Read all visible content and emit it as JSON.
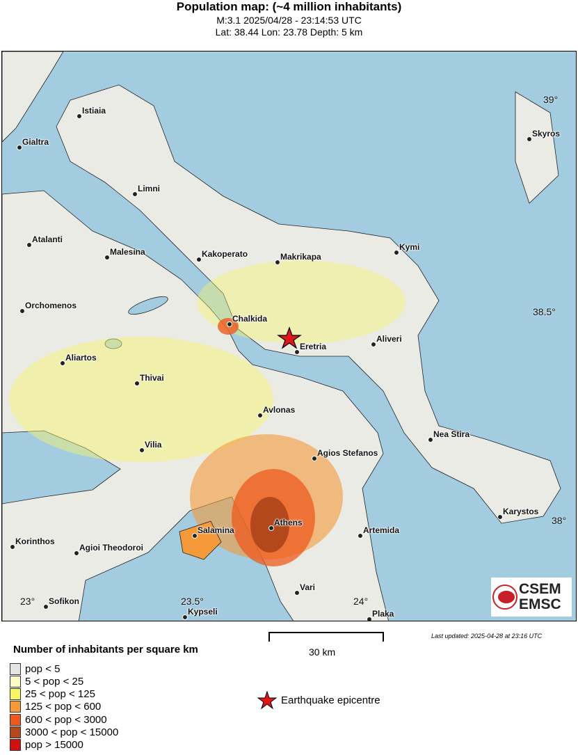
{
  "header": {
    "title": "Population map: (~4 million inhabitants)",
    "line1": "M:3.1 2025/04/28 - 23:14:53 UTC",
    "line2": "Lat: 38.44 Lon: 23.78 Depth: 5 km"
  },
  "map": {
    "sea_color": "#a3cce0",
    "land_color": "#ebebe6",
    "grid_labels": {
      "lat39": "39°",
      "lat38_5": "38.5°",
      "lat38": "38°",
      "lon23": "23°",
      "lon23_5": "23.5°",
      "lon24": "24°"
    },
    "cities": [
      "Istiaia",
      "Gialtra",
      "Limni",
      "Atalanti",
      "Malesina",
      "Kakoperato",
      "Makrikapa",
      "Kymi",
      "Skyros",
      "Orchomenos",
      "Chalkida",
      "Eretria",
      "Aliveri",
      "Aliartos",
      "Thivai",
      "Avlonas",
      "Vilia",
      "Agios Stefanos",
      "Nea Stira",
      "Karystos",
      "Athens",
      "Salamina",
      "Artemida",
      "Korinthos",
      "Agioi Theodoroi",
      "Vari",
      "Sofikon",
      "Kypseli",
      "Plaka"
    ],
    "epicentre": {
      "lat": 38.44,
      "lon": 23.78
    }
  },
  "logo": {
    "text1": "CSEM",
    "text2": "EMSC"
  },
  "scale": {
    "label": "30 km"
  },
  "updated": "Last updated: 2025-04-28 at 23:16 UTC",
  "legend": {
    "title": "Number of inhabitants per square km",
    "items": [
      {
        "label": "pop < 5",
        "color": "#e4e4e4"
      },
      {
        "label": "5 < pop < 25",
        "color": "#fbfbc8"
      },
      {
        "label": "25 < pop < 125",
        "color": "#f8f565"
      },
      {
        "label": "125 < pop < 600",
        "color": "#f49a3a"
      },
      {
        "label": "600 < pop < 3000",
        "color": "#ee5a1e"
      },
      {
        "label": "3000 < pop < 15000",
        "color": "#b2481c"
      },
      {
        "label": "pop > 15000",
        "color": "#d10f0f"
      }
    ],
    "epicentre_label": "Earthquake epicentre"
  }
}
